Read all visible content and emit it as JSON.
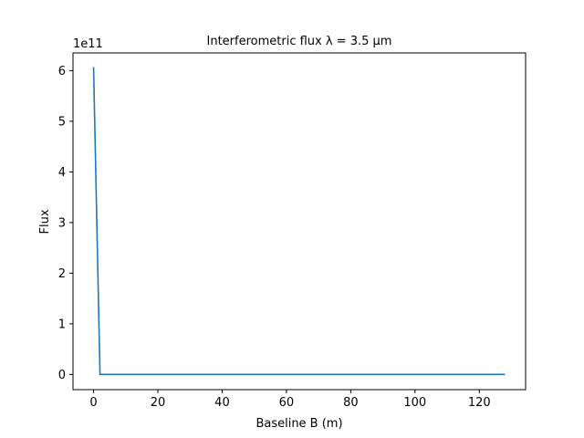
{
  "chart_data": {
    "type": "line",
    "title": "Interferometric flux λ = 3.5 μm",
    "xlabel": "Baseline B (m)",
    "ylabel": "Flux",
    "y_offset_label": "1e11",
    "xlim": [
      -6.4,
      134.4
    ],
    "ylim": [
      -0.3,
      6.35
    ],
    "x_ticks": [
      0,
      20,
      40,
      60,
      80,
      100,
      120
    ],
    "y_ticks": [
      0,
      1,
      2,
      3,
      4,
      5,
      6
    ],
    "grid": false,
    "series": [
      {
        "color": "#1f77b4",
        "x": [
          0,
          2,
          128
        ],
        "y": [
          6.07,
          0.0,
          0.0
        ]
      }
    ]
  }
}
